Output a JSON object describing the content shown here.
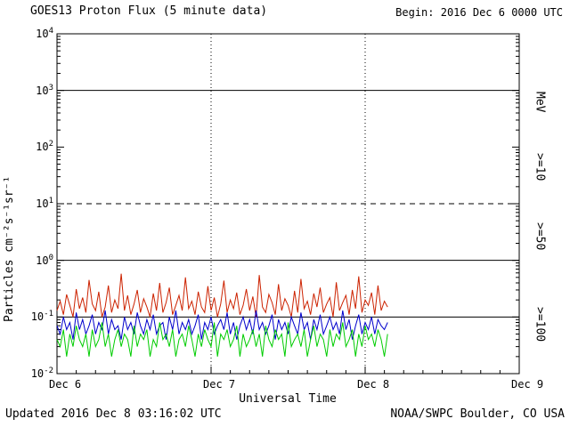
{
  "header": {
    "title": "GOES13 Proton Flux (5 minute data)",
    "begin_label": "Begin: 2016 Dec 6 0000 UTC"
  },
  "footer": {
    "updated": "Updated 2016 Dec  8 03:16:02 UTC",
    "source": "NOAA/SWPC Boulder, CO USA"
  },
  "axes": {
    "y_label": "Particles cm⁻²s⁻¹sr⁻¹",
    "x_label": "Universal Time",
    "right_axis_unit": "MeV"
  },
  "colors": {
    "axis": "#000000",
    "ge10": "#cc2200",
    "ge50": "#0000cc",
    "ge100": "#00cc00",
    "background": "#ffffff"
  },
  "chart_data": {
    "type": "line",
    "title": "GOES13 Proton Flux (5 minute data)",
    "xlabel": "Universal Time",
    "ylabel": "Particles cm-2 s-1 sr-1",
    "y_scale": "log",
    "ylim": [
      0.01,
      10000
    ],
    "y_tick_exponents": [
      4,
      3,
      2,
      1,
      0,
      -1,
      -2
    ],
    "x_ticks": [
      "Dec 6",
      "Dec 7",
      "Dec 8",
      "Dec 9"
    ],
    "x_range_days": 3,
    "grid": "dotted vertical at day boundaries",
    "legend_position": "right, rotated",
    "reference_lines": [
      {
        "y": 1000,
        "style": "solid"
      },
      {
        "y": 10,
        "style": "dashed"
      },
      {
        "y": 1,
        "style": "solid"
      },
      {
        "y": 0.1,
        "style": "solid"
      }
    ],
    "sample_interval_hours": 0.5,
    "data_end_hours": 51.5,
    "series": [
      {
        "name": ">=10",
        "unit": "MeV",
        "color": "#cc2200",
        "values": [
          0.13,
          0.19,
          0.11,
          0.25,
          0.16,
          0.1,
          0.31,
          0.14,
          0.22,
          0.12,
          0.45,
          0.17,
          0.13,
          0.28,
          0.1,
          0.15,
          0.36,
          0.12,
          0.2,
          0.14,
          0.58,
          0.13,
          0.24,
          0.11,
          0.17,
          0.3,
          0.12,
          0.21,
          0.15,
          0.1,
          0.26,
          0.13,
          0.4,
          0.12,
          0.18,
          0.33,
          0.11,
          0.16,
          0.24,
          0.13,
          0.5,
          0.14,
          0.19,
          0.11,
          0.28,
          0.15,
          0.12,
          0.35,
          0.13,
          0.22,
          0.1,
          0.17,
          0.44,
          0.12,
          0.2,
          0.14,
          0.27,
          0.11,
          0.16,
          0.31,
          0.13,
          0.23,
          0.1,
          0.55,
          0.15,
          0.12,
          0.25,
          0.18,
          0.11,
          0.38,
          0.13,
          0.21,
          0.16,
          0.1,
          0.29,
          0.12,
          0.47,
          0.14,
          0.19,
          0.11,
          0.26,
          0.15,
          0.33,
          0.12,
          0.17,
          0.22,
          0.1,
          0.41,
          0.13,
          0.18,
          0.24,
          0.11,
          0.3,
          0.14,
          0.52,
          0.12,
          0.2,
          0.16,
          0.27,
          0.11,
          0.36,
          0.13,
          0.19,
          0.15
        ]
      },
      {
        "name": ">=50",
        "unit": "MeV",
        "color": "#0000cc",
        "values": [
          0.07,
          0.05,
          0.1,
          0.06,
          0.08,
          0.04,
          0.12,
          0.06,
          0.09,
          0.05,
          0.07,
          0.11,
          0.05,
          0.08,
          0.06,
          0.13,
          0.05,
          0.09,
          0.06,
          0.07,
          0.04,
          0.1,
          0.06,
          0.08,
          0.05,
          0.12,
          0.07,
          0.05,
          0.09,
          0.06,
          0.11,
          0.05,
          0.07,
          0.08,
          0.04,
          0.1,
          0.06,
          0.13,
          0.05,
          0.08,
          0.06,
          0.09,
          0.05,
          0.07,
          0.11,
          0.04,
          0.08,
          0.06,
          0.1,
          0.05,
          0.07,
          0.09,
          0.06,
          0.12,
          0.05,
          0.08,
          0.04,
          0.07,
          0.1,
          0.06,
          0.09,
          0.05,
          0.13,
          0.06,
          0.08,
          0.05,
          0.07,
          0.11,
          0.04,
          0.09,
          0.06,
          0.08,
          0.05,
          0.1,
          0.07,
          0.05,
          0.12,
          0.06,
          0.08,
          0.04,
          0.09,
          0.06,
          0.11,
          0.05,
          0.07,
          0.1,
          0.06,
          0.08,
          0.05,
          0.13,
          0.06,
          0.09,
          0.04,
          0.07,
          0.11,
          0.05,
          0.08,
          0.06,
          0.1,
          0.05,
          0.09,
          0.07,
          0.06,
          0.08
        ]
      },
      {
        "name": ">=100",
        "unit": "MeV",
        "color": "#00cc00",
        "values": [
          0.04,
          0.03,
          0.06,
          0.02,
          0.05,
          0.03,
          0.07,
          0.04,
          0.03,
          0.05,
          0.02,
          0.06,
          0.03,
          0.04,
          0.08,
          0.03,
          0.05,
          0.02,
          0.04,
          0.06,
          0.03,
          0.05,
          0.04,
          0.02,
          0.07,
          0.03,
          0.05,
          0.04,
          0.06,
          0.02,
          0.04,
          0.03,
          0.08,
          0.04,
          0.05,
          0.03,
          0.06,
          0.02,
          0.04,
          0.05,
          0.03,
          0.07,
          0.04,
          0.02,
          0.05,
          0.03,
          0.06,
          0.04,
          0.03,
          0.08,
          0.02,
          0.05,
          0.04,
          0.06,
          0.03,
          0.04,
          0.07,
          0.02,
          0.05,
          0.03,
          0.04,
          0.06,
          0.03,
          0.05,
          0.02,
          0.07,
          0.04,
          0.03,
          0.06,
          0.04,
          0.05,
          0.02,
          0.08,
          0.03,
          0.04,
          0.05,
          0.03,
          0.06,
          0.02,
          0.04,
          0.07,
          0.03,
          0.05,
          0.04,
          0.02,
          0.06,
          0.03,
          0.05,
          0.04,
          0.08,
          0.03,
          0.04,
          0.06,
          0.02,
          0.05,
          0.03,
          0.07,
          0.04,
          0.05,
          0.03,
          0.06,
          0.04,
          0.02,
          0.05
        ]
      }
    ]
  }
}
